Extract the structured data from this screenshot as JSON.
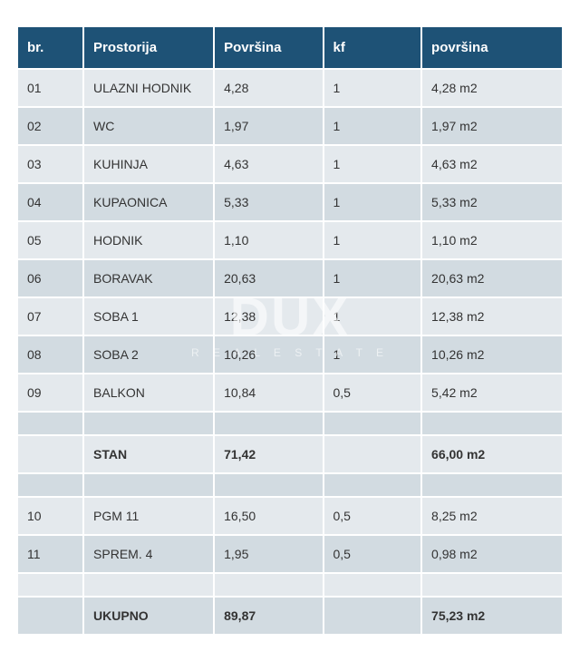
{
  "watermark": {
    "line1": "DUX",
    "line2": "R E A L   E S T A T E"
  },
  "table": {
    "columns": [
      "br.",
      "Prostorija",
      "Površina",
      "kf",
      "površina"
    ],
    "rows": [
      {
        "br": "01",
        "prostorija": "ULAZNI HODNIK",
        "povrsina": "4,28",
        "kf": "1",
        "povrsina2": "4,28 m2",
        "bold": false
      },
      {
        "br": "02",
        "prostorija": "WC",
        "povrsina": "1,97",
        "kf": "1",
        "povrsina2": "1,97 m2",
        "bold": false
      },
      {
        "br": "03",
        "prostorija": "KUHINJA",
        "povrsina": "4,63",
        "kf": "1",
        "povrsina2": "4,63 m2",
        "bold": false
      },
      {
        "br": "04",
        "prostorija": "KUPAONICA",
        "povrsina": "5,33",
        "kf": "1",
        "povrsina2": "5,33 m2",
        "bold": false
      },
      {
        "br": "05",
        "prostorija": "HODNIK",
        "povrsina": "1,10",
        "kf": "1",
        "povrsina2": "1,10 m2",
        "bold": false
      },
      {
        "br": "06",
        "prostorija": "BORAVAK",
        "povrsina": "20,63",
        "kf": "1",
        "povrsina2": "20,63 m2",
        "bold": false
      },
      {
        "br": "07",
        "prostorija": "SOBA 1",
        "povrsina": "12,38",
        "kf": "1",
        "povrsina2": "12,38 m2",
        "bold": false
      },
      {
        "br": "08",
        "prostorija": "SOBA 2",
        "povrsina": "10,26",
        "kf": "1",
        "povrsina2": "10,26 m2",
        "bold": false
      },
      {
        "br": "09",
        "prostorija": "BALKON",
        "povrsina": "10,84",
        "kf": "0,5",
        "povrsina2": "5,42 m2",
        "bold": false
      },
      {
        "br": "",
        "prostorija": "",
        "povrsina": "",
        "kf": "",
        "povrsina2": "",
        "bold": false
      },
      {
        "br": "",
        "prostorija": "STAN",
        "povrsina": "71,42",
        "kf": "",
        "povrsina2": "66,00 m2",
        "bold": true
      },
      {
        "br": "",
        "prostorija": "",
        "povrsina": "",
        "kf": "",
        "povrsina2": "",
        "bold": false
      },
      {
        "br": "10",
        "prostorija": "PGM 11",
        "povrsina": "16,50",
        "kf": "0,5",
        "povrsina2": "8,25 m2",
        "bold": false
      },
      {
        "br": "11",
        "prostorija": "SPREM. 4",
        "povrsina": "1,95",
        "kf": "0,5",
        "povrsina2": "0,98 m2",
        "bold": false
      },
      {
        "br": "",
        "prostorija": "",
        "povrsina": "",
        "kf": "",
        "povrsina2": "",
        "bold": false
      },
      {
        "br": "",
        "prostorija": "UKUPNO",
        "povrsina": "89,87",
        "kf": "",
        "povrsina2": "75,23 m2",
        "bold": true
      }
    ]
  },
  "styling": {
    "header_bg": "#1e5276",
    "header_fg": "#ffffff",
    "row_odd_bg": "#e4e9ed",
    "row_even_bg": "#d2dbe1",
    "text_color": "#333333",
    "header_fontsize": 15,
    "cell_fontsize": 14,
    "spacing": 2
  }
}
